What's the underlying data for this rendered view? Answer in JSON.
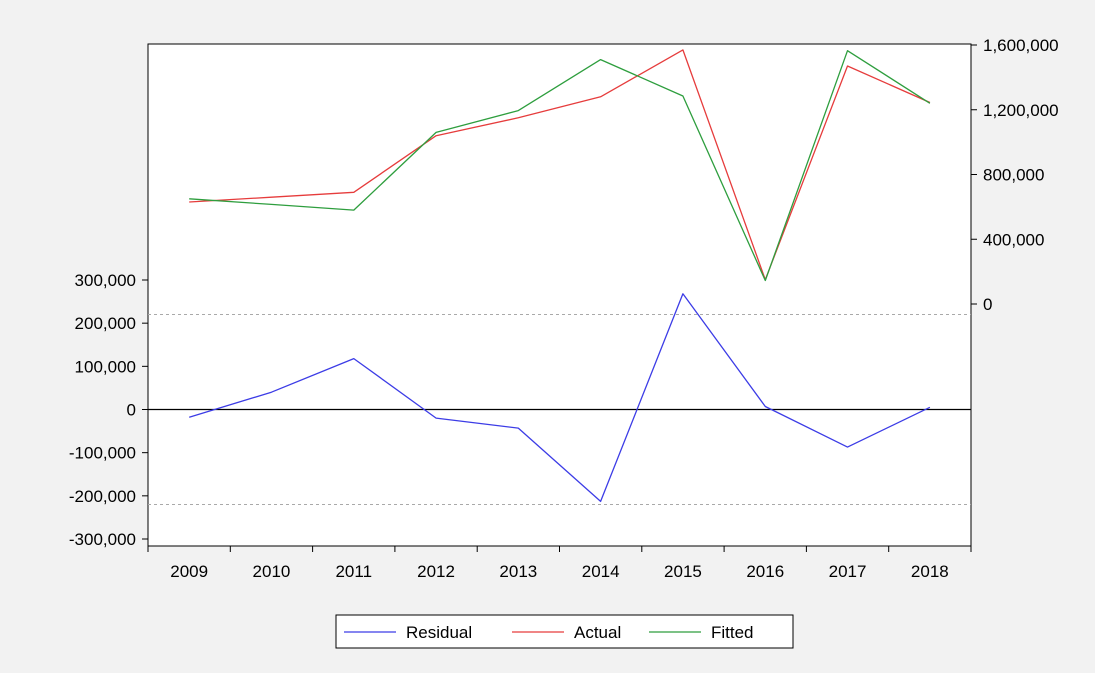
{
  "chart_data": {
    "type": "line",
    "title": "",
    "xlabel": "",
    "x": [
      "2009",
      "2010",
      "2011",
      "2012",
      "2013",
      "2014",
      "2015",
      "2016",
      "2017",
      "2018"
    ],
    "left_axis": {
      "ticks": [
        "300,000",
        "200,000",
        "100,000",
        "0",
        "-100,000",
        "-200,000",
        "-300,000"
      ],
      "tick_values": [
        300000,
        200000,
        100000,
        0,
        -100000,
        -200000,
        -300000
      ],
      "range": [
        -300000,
        300000
      ]
    },
    "right_axis": {
      "ticks": [
        "1,600,000",
        "1,200,000",
        "800,000",
        "400,000",
        "0"
      ],
      "tick_values": [
        1600000,
        1200000,
        800000,
        400000,
        0
      ],
      "range": [
        0,
        1600000
      ]
    },
    "reference_lines": {
      "residual_dashed": [
        220000,
        -220000
      ],
      "residual_zero": 0
    },
    "series": [
      {
        "name": "Residual",
        "axis": "left",
        "color": "#3c3ce6",
        "values": [
          -18000,
          40000,
          118000,
          -20000,
          -43000,
          -213000,
          268000,
          7000,
          -87000,
          5000
        ]
      },
      {
        "name": "Actual",
        "axis": "right",
        "color": "#e63c3c",
        "values": [
          630000,
          660000,
          690000,
          1040000,
          1150000,
          1280000,
          1570000,
          150000,
          1470000,
          1245000
        ]
      },
      {
        "name": "Fitted",
        "axis": "right",
        "color": "#2e9e3e",
        "values": [
          650000,
          615000,
          580000,
          1060000,
          1195000,
          1510000,
          1285000,
          145000,
          1565000,
          1240000
        ]
      }
    ],
    "legend_position": "bottom-center",
    "grid": false
  }
}
